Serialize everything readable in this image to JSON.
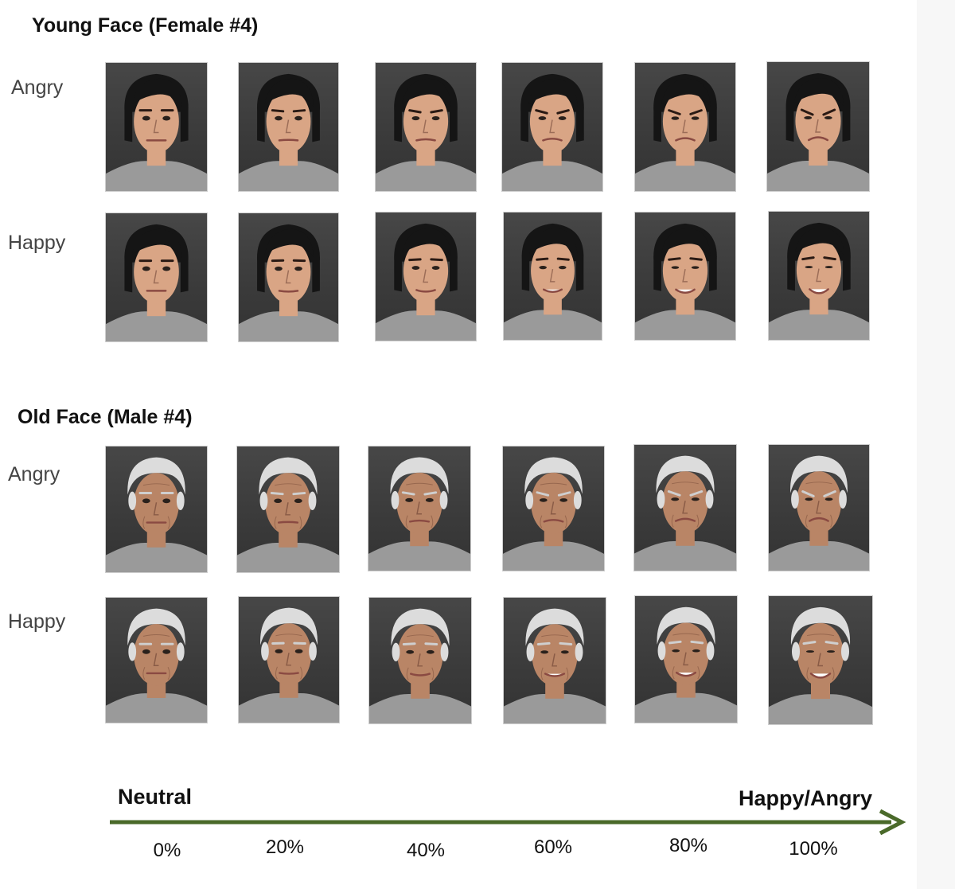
{
  "sections": [
    {
      "title": "Young Face (Female #4)",
      "subject": "young-female",
      "rows": [
        {
          "label": "Angry",
          "emotion": "angry",
          "levels": [
            0,
            20,
            40,
            60,
            80,
            100
          ]
        },
        {
          "label": "Happy",
          "emotion": "happy",
          "levels": [
            0,
            20,
            40,
            60,
            80,
            100
          ]
        }
      ]
    },
    {
      "title": "Old Face (Male #4)",
      "subject": "old-male",
      "rows": [
        {
          "label": "Angry",
          "emotion": "angry",
          "levels": [
            0,
            20,
            40,
            60,
            80,
            100
          ]
        },
        {
          "label": "Happy",
          "emotion": "happy",
          "levels": [
            0,
            20,
            40,
            60,
            80,
            100
          ]
        }
      ]
    }
  ],
  "axis": {
    "start_label": "Neutral",
    "end_label": "Happy/Angry",
    "arrow_color": "#4a6a2a",
    "ticks": [
      "0%",
      "20%",
      "40%",
      "60%",
      "80%",
      "100%"
    ]
  }
}
